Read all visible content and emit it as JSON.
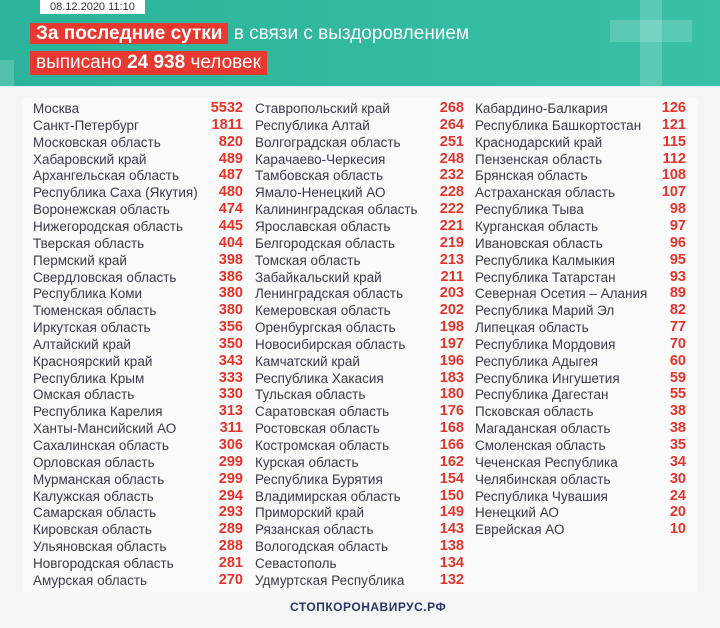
{
  "header": {
    "date": "08.12.2020 11:10",
    "title_highlight": "За последние сутки",
    "title_rest": "в связи с выздоровлением",
    "line2_start": "выписано",
    "line2_number": "24 938",
    "line2_end": "человек"
  },
  "table": {
    "columns": [
      [
        [
          "Москва",
          5532
        ],
        [
          "Санкт-Петербург",
          1811
        ],
        [
          "Московская область",
          820
        ],
        [
          "Хабаровский край",
          489
        ],
        [
          "Архангельская область",
          487
        ],
        [
          "Республика Саха (Якутия)",
          480
        ],
        [
          "Воронежская область",
          474
        ],
        [
          "Нижегородская область",
          445
        ],
        [
          "Тверская область",
          404
        ],
        [
          "Пермский край",
          398
        ],
        [
          "Свердловская область",
          386
        ],
        [
          "Республика Коми",
          380
        ],
        [
          "Тюменская область",
          380
        ],
        [
          "Иркутская область",
          356
        ],
        [
          "Алтайский край",
          350
        ],
        [
          "Красноярский край",
          343
        ],
        [
          "Республика Крым",
          333
        ],
        [
          "Омская область",
          330
        ],
        [
          "Республика Карелия",
          313
        ],
        [
          "Ханты-Мансийский АО",
          311
        ],
        [
          "Сахалинская область",
          306
        ],
        [
          "Орловская область",
          299
        ],
        [
          "Мурманская область",
          299
        ],
        [
          "Калужская область",
          294
        ],
        [
          "Самарская область",
          293
        ],
        [
          "Кировская область",
          289
        ],
        [
          "Ульяновская область",
          288
        ],
        [
          "Новгородская область",
          281
        ],
        [
          "Амурская область",
          270
        ]
      ],
      [
        [
          "Ставропольский край",
          268
        ],
        [
          "Республика Алтай",
          264
        ],
        [
          "Волгоградская область",
          251
        ],
        [
          "Карачаево-Черкесия",
          248
        ],
        [
          "Тамбовская область",
          232
        ],
        [
          "Ямало-Ненецкий АО",
          228
        ],
        [
          "Калининградская область",
          222
        ],
        [
          "Ярославская область",
          221
        ],
        [
          "Белгородская область",
          219
        ],
        [
          "Томская область",
          213
        ],
        [
          "Забайкальский край",
          211
        ],
        [
          "Ленинградская область",
          203
        ],
        [
          "Кемеровская область",
          202
        ],
        [
          "Оренбургская область",
          198
        ],
        [
          "Новосибирская область",
          197
        ],
        [
          "Камчатский край",
          196
        ],
        [
          "Республика Хакасия",
          183
        ],
        [
          "Тульская область",
          180
        ],
        [
          "Саратовская область",
          176
        ],
        [
          "Ростовская область",
          168
        ],
        [
          "Костромская область",
          166
        ],
        [
          "Курская область",
          162
        ],
        [
          "Республика Бурятия",
          154
        ],
        [
          "Владимирская область",
          150
        ],
        [
          "Приморский край",
          149
        ],
        [
          "Рязанская область",
          143
        ],
        [
          "Вологодская область",
          138
        ],
        [
          "Севастополь",
          134
        ],
        [
          "Удмуртская Республика",
          132
        ]
      ],
      [
        [
          "Кабардино-Балкария",
          126
        ],
        [
          "Республика Башкортостан",
          121
        ],
        [
          "Краснодарский край",
          115
        ],
        [
          "Пензенская область",
          112
        ],
        [
          "Брянская область",
          108
        ],
        [
          "Астраханская область",
          107
        ],
        [
          "Республика Тыва",
          98
        ],
        [
          "Курганская область",
          97
        ],
        [
          "Ивановская область",
          96
        ],
        [
          "Республика Калмыкия",
          95
        ],
        [
          "Республика Татарстан",
          93
        ],
        [
          "Северная Осетия – Алания",
          89
        ],
        [
          "Республика Марий Эл",
          82
        ],
        [
          "Липецкая область",
          77
        ],
        [
          "Республика Мордовия",
          70
        ],
        [
          "Республика Адыгея",
          60
        ],
        [
          "Республика Ингушетия",
          59
        ],
        [
          "Республика Дагестан",
          55
        ],
        [
          "Псковская область",
          38
        ],
        [
          "Магаданская область",
          38
        ],
        [
          "Смоленская область",
          35
        ],
        [
          "Чеченская Республика",
          34
        ],
        [
          "Челябинская область",
          30
        ],
        [
          "Республика Чувашия",
          24
        ],
        [
          "Ненецкий АО",
          20
        ],
        [
          "Еврейская АО",
          10
        ]
      ]
    ]
  },
  "footer": {
    "logo": "СТОПКОРОНАВИРУС.РФ"
  }
}
